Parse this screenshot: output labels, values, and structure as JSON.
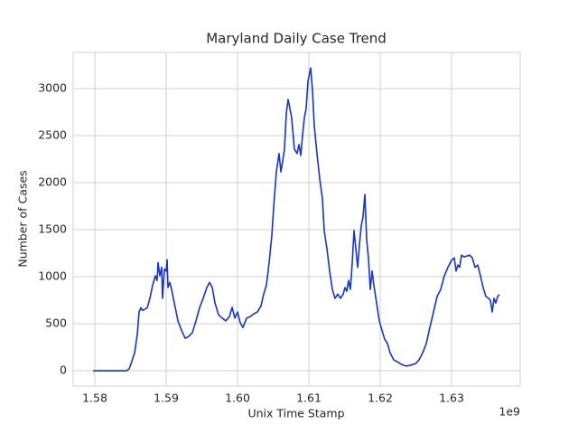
{
  "chart_data": {
    "type": "line",
    "title": "Maryland Daily Case Trend",
    "x_label": "Unix Time Stamp",
    "y_label": "Number of Cases",
    "x_offset_label": "1e9",
    "grid": true,
    "xlim": [
      1576960000,
      1639620000
    ],
    "ylim": [
      -163,
      3385
    ],
    "xticks": [
      {
        "value": 1580000000,
        "label": "1.58"
      },
      {
        "value": 1590000000,
        "label": "1.59"
      },
      {
        "value": 1600000000,
        "label": "1.60"
      },
      {
        "value": 1610000000,
        "label": "1.61"
      },
      {
        "value": 1620000000,
        "label": "1.62"
      },
      {
        "value": 1630000000,
        "label": "1.63"
      }
    ],
    "yticks": [
      0,
      500,
      1000,
      1500,
      2000,
      2500,
      3000
    ],
    "x": [
      1579750000,
      1584430000,
      1584810000,
      1585190000,
      1585570000,
      1585950000,
      1586200000,
      1586460000,
      1586710000,
      1587340000,
      1587720000,
      1588100000,
      1588480000,
      1588730000,
      1588860000,
      1589110000,
      1589370000,
      1589490000,
      1589750000,
      1590000000,
      1590130000,
      1590250000,
      1590510000,
      1590760000,
      1591140000,
      1591650000,
      1592150000,
      1592660000,
      1593160000,
      1593670000,
      1594180000,
      1594680000,
      1595190000,
      1595700000,
      1596080000,
      1596460000,
      1596840000,
      1597340000,
      1597850000,
      1598350000,
      1598860000,
      1599240000,
      1599620000,
      1600000000,
      1600380000,
      1600760000,
      1601270000,
      1601770000,
      1602280000,
      1602780000,
      1603290000,
      1603670000,
      1604050000,
      1604430000,
      1604810000,
      1605060000,
      1605440000,
      1605820000,
      1606080000,
      1606330000,
      1606580000,
      1606840000,
      1607090000,
      1607340000,
      1607590000,
      1607970000,
      1608350000,
      1608610000,
      1608860000,
      1609110000,
      1609370000,
      1609620000,
      1609870000,
      1610250000,
      1610510000,
      1610760000,
      1611140000,
      1611520000,
      1611900000,
      1612150000,
      1612530000,
      1612910000,
      1613290000,
      1613670000,
      1614050000,
      1614430000,
      1614810000,
      1615060000,
      1615320000,
      1615570000,
      1615820000,
      1616080000,
      1616330000,
      1616580000,
      1616840000,
      1617090000,
      1617340000,
      1617590000,
      1617850000,
      1618100000,
      1618350000,
      1618610000,
      1618860000,
      1619110000,
      1619490000,
      1619870000,
      1620250000,
      1620630000,
      1621010000,
      1621390000,
      1621900000,
      1622410000,
      1623040000,
      1623670000,
      1624300000,
      1624940000,
      1625440000,
      1625950000,
      1626460000,
      1626960000,
      1627470000,
      1627970000,
      1628480000,
      1628990000,
      1629490000,
      1630000000,
      1630380000,
      1630630000,
      1630890000,
      1631140000,
      1631390000,
      1631770000,
      1632150000,
      1632530000,
      1632910000,
      1633290000,
      1633670000,
      1634050000,
      1634430000,
      1634810000,
      1635190000,
      1635440000,
      1635700000,
      1635950000,
      1636200000,
      1636460000,
      1636710000
    ],
    "series": [
      {
        "name": "Cases",
        "color": "#1533d6",
        "values": [
          0,
          0,
          20,
          100,
          190,
          385,
          625,
          670,
          640,
          670,
          770,
          910,
          1010,
          960,
          1150,
          1010,
          1100,
          770,
          1080,
          1060,
          1180,
          885,
          940,
          865,
          720,
          530,
          430,
          345,
          365,
          405,
          530,
          670,
          770,
          885,
          940,
          885,
          720,
          595,
          560,
          530,
          575,
          675,
          560,
          625,
          510,
          460,
          560,
          575,
          605,
          625,
          690,
          815,
          910,
          1150,
          1440,
          1730,
          2115,
          2310,
          2115,
          2230,
          2355,
          2740,
          2885,
          2790,
          2690,
          2355,
          2310,
          2405,
          2290,
          2500,
          2690,
          2790,
          3075,
          3220,
          2980,
          2600,
          2310,
          2040,
          1830,
          1490,
          1300,
          1060,
          865,
          770,
          815,
          770,
          815,
          885,
          845,
          960,
          865,
          1150,
          1490,
          1300,
          1100,
          1345,
          1540,
          1635,
          1875,
          1395,
          1200,
          865,
          1060,
          910,
          720,
          530,
          430,
          335,
          290,
          190,
          115,
          95,
          65,
          50,
          60,
          75,
          115,
          190,
          290,
          460,
          625,
          790,
          865,
          1010,
          1100,
          1175,
          1200,
          1060,
          1125,
          1100,
          1230,
          1210,
          1220,
          1230,
          1200,
          1100,
          1125,
          1010,
          885,
          790,
          770,
          750,
          625,
          770,
          720,
          790,
          810
        ]
      }
    ]
  }
}
